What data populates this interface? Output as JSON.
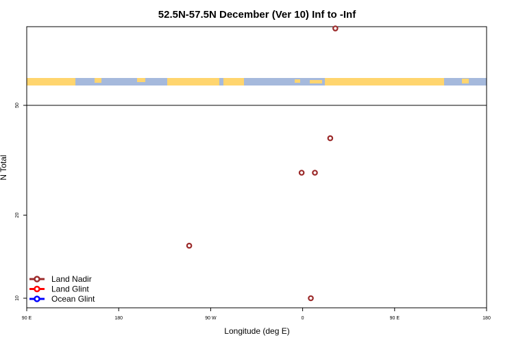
{
  "chart_data": {
    "type": "scatter",
    "title": "52.5N-57.5N December (Ver 10)   Inf to -Inf",
    "xlabel": "Longitude (deg E)",
    "ylabel": "N Total",
    "x_ticks": [
      {
        "value": 90,
        "label": "90 E"
      },
      {
        "value": 180,
        "label": "180"
      },
      {
        "value": 270,
        "label": "90 W"
      },
      {
        "value": 360,
        "label": "0"
      },
      {
        "value": 450,
        "label": "90 E"
      },
      {
        "value": 540,
        "label": "180"
      }
    ],
    "xlim": [
      90,
      540
    ],
    "y_scale": "log",
    "y_ticks": [
      10,
      20,
      50
    ],
    "reference_line": 50,
    "map_strip": {
      "latitude_band": "52.5N-57.5N",
      "land_color": "#ffd56e",
      "ocean_color": "#a5b9dc"
    },
    "series": [
      {
        "name": "Land Nadir",
        "color": "#9b2a2a",
        "points": [
          {
            "x": 249,
            "y": 15.5
          },
          {
            "x": 359,
            "y": 28.5
          },
          {
            "x": 372,
            "y": 28.5
          },
          {
            "x": 368,
            "y": 10
          },
          {
            "x": 387,
            "y": 38
          },
          {
            "x": 392,
            "y": 95
          }
        ]
      },
      {
        "name": "Land Glint",
        "color": "#ff0000",
        "points": []
      },
      {
        "name": "Ocean Glint",
        "color": "#0000ff",
        "points": []
      }
    ],
    "legend_position": "bottom-left"
  }
}
